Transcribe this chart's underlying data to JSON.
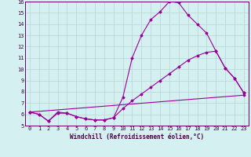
{
  "xlabel": "Windchill (Refroidissement éolien,°C)",
  "bg_color": "#d4f0f0",
  "line_color": "#990099",
  "grid_color": "#b8d4d4",
  "xlim": [
    -0.5,
    23.5
  ],
  "ylim": [
    5,
    16
  ],
  "xticks": [
    0,
    1,
    2,
    3,
    4,
    5,
    6,
    7,
    8,
    9,
    10,
    11,
    12,
    13,
    14,
    15,
    16,
    17,
    18,
    19,
    20,
    21,
    22,
    23
  ],
  "yticks": [
    5,
    6,
    7,
    8,
    9,
    10,
    11,
    12,
    13,
    14,
    15,
    16
  ],
  "line1_x": [
    0,
    1,
    2,
    3,
    4,
    5,
    6,
    7,
    8,
    9,
    10,
    11,
    12,
    13,
    14,
    15,
    16,
    17,
    18,
    19,
    20,
    21,
    22,
    23
  ],
  "line1_y": [
    6.2,
    6.0,
    5.4,
    6.2,
    6.1,
    5.8,
    5.6,
    5.5,
    5.5,
    5.7,
    7.5,
    11.0,
    13.0,
    14.4,
    15.1,
    16.0,
    15.9,
    14.8,
    14.0,
    13.2,
    11.6,
    10.1,
    9.2,
    7.9
  ],
  "line2_x": [
    0,
    1,
    2,
    3,
    4,
    5,
    6,
    7,
    8,
    9,
    10,
    11,
    12,
    13,
    14,
    15,
    16,
    17,
    18,
    19,
    20,
    21,
    22,
    23
  ],
  "line2_y": [
    6.2,
    6.0,
    5.4,
    6.1,
    6.1,
    5.8,
    5.6,
    5.5,
    5.5,
    5.7,
    6.5,
    7.2,
    7.8,
    8.4,
    9.0,
    9.6,
    10.2,
    10.8,
    11.2,
    11.5,
    11.6,
    10.1,
    9.2,
    7.9
  ],
  "line3_x": [
    0,
    23
  ],
  "line3_y": [
    6.2,
    7.7
  ],
  "tick_fontsize": 5.0,
  "xlabel_fontsize": 5.5
}
